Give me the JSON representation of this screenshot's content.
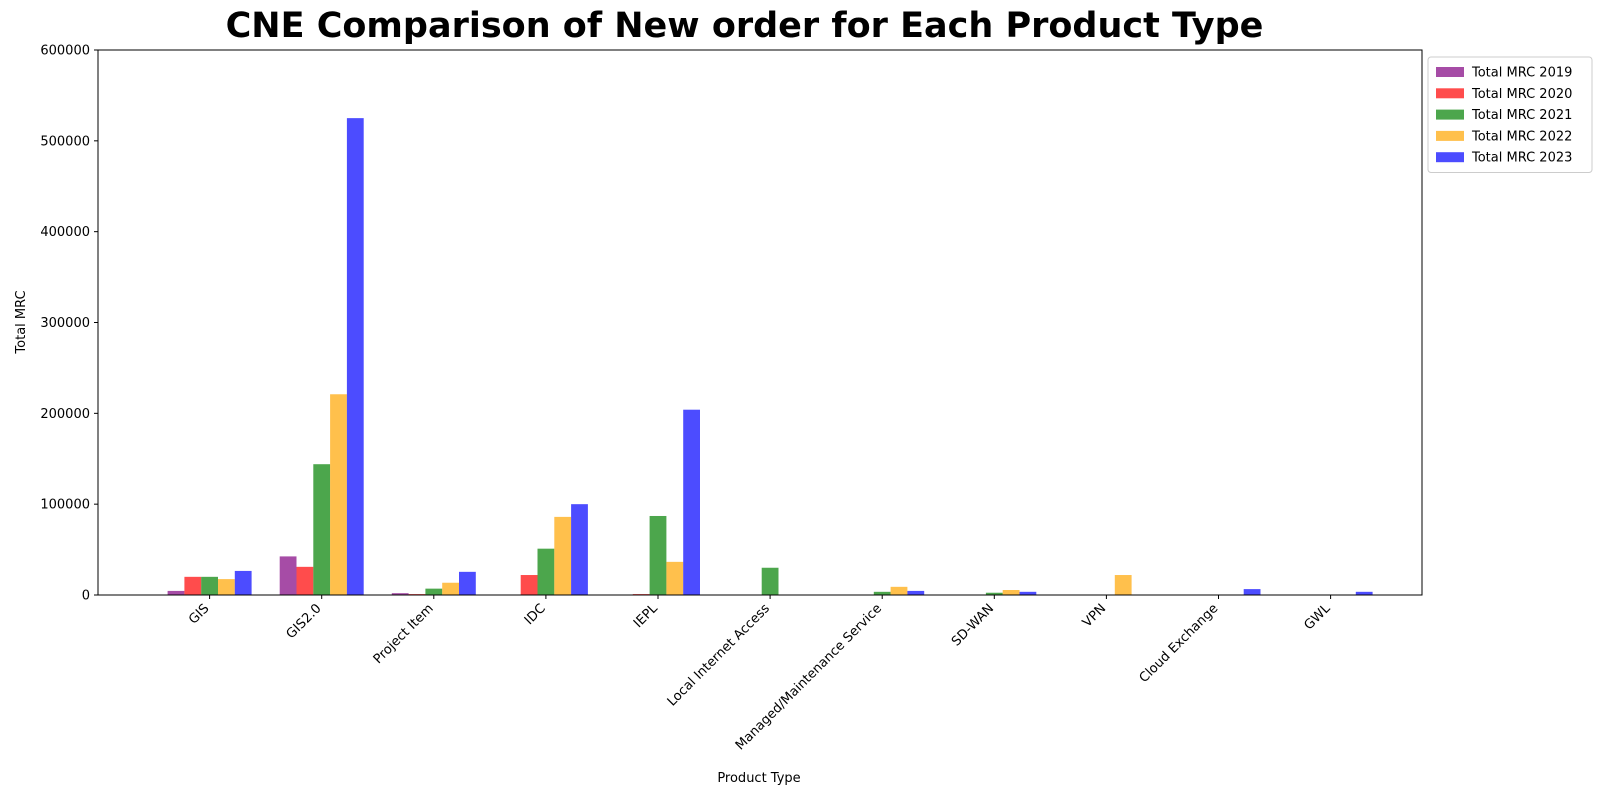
{
  "chart_data": {
    "type": "bar",
    "title": "CNE Comparison of New order for Each Product Type",
    "xlabel": "Product Type",
    "ylabel": "Total MRC",
    "ylim": [
      0,
      600000
    ],
    "yticks": [
      0,
      100000,
      200000,
      300000,
      400000,
      500000,
      600000
    ],
    "grid": false,
    "legend_position": "outside top-right",
    "categories": [
      "GIS",
      "GIS2.0",
      "Project Item",
      "IDC",
      "IEPL",
      "Local Internet Access",
      "Managed/Maintenance Service",
      "SD-WAN",
      "VPN",
      "Cloud Exchange",
      "GWL"
    ],
    "series": [
      {
        "name": "Total MRC 2019",
        "color": "#800080",
        "values": [
          4500,
          42500,
          2000,
          0,
          0,
          0,
          0,
          0,
          0,
          0,
          0
        ]
      },
      {
        "name": "Total MRC 2020",
        "color": "#ff0000",
        "values": [
          20000,
          31000,
          1000,
          22000,
          1000,
          0,
          0,
          0,
          0,
          0,
          0
        ]
      },
      {
        "name": "Total MRC 2021",
        "color": "#008000",
        "values": [
          20000,
          144000,
          7000,
          51000,
          87000,
          30000,
          3500,
          2500,
          0,
          0,
          0
        ]
      },
      {
        "name": "Total MRC 2022",
        "color": "#ffa500",
        "values": [
          17500,
          221000,
          13500,
          86000,
          36500,
          0,
          9000,
          5500,
          22000,
          0,
          0
        ]
      },
      {
        "name": "Total MRC 2023",
        "color": "#0000ff",
        "values": [
          26500,
          525000,
          25500,
          100000,
          204000,
          0,
          4500,
          3500,
          0,
          6500,
          3500
        ]
      }
    ]
  }
}
